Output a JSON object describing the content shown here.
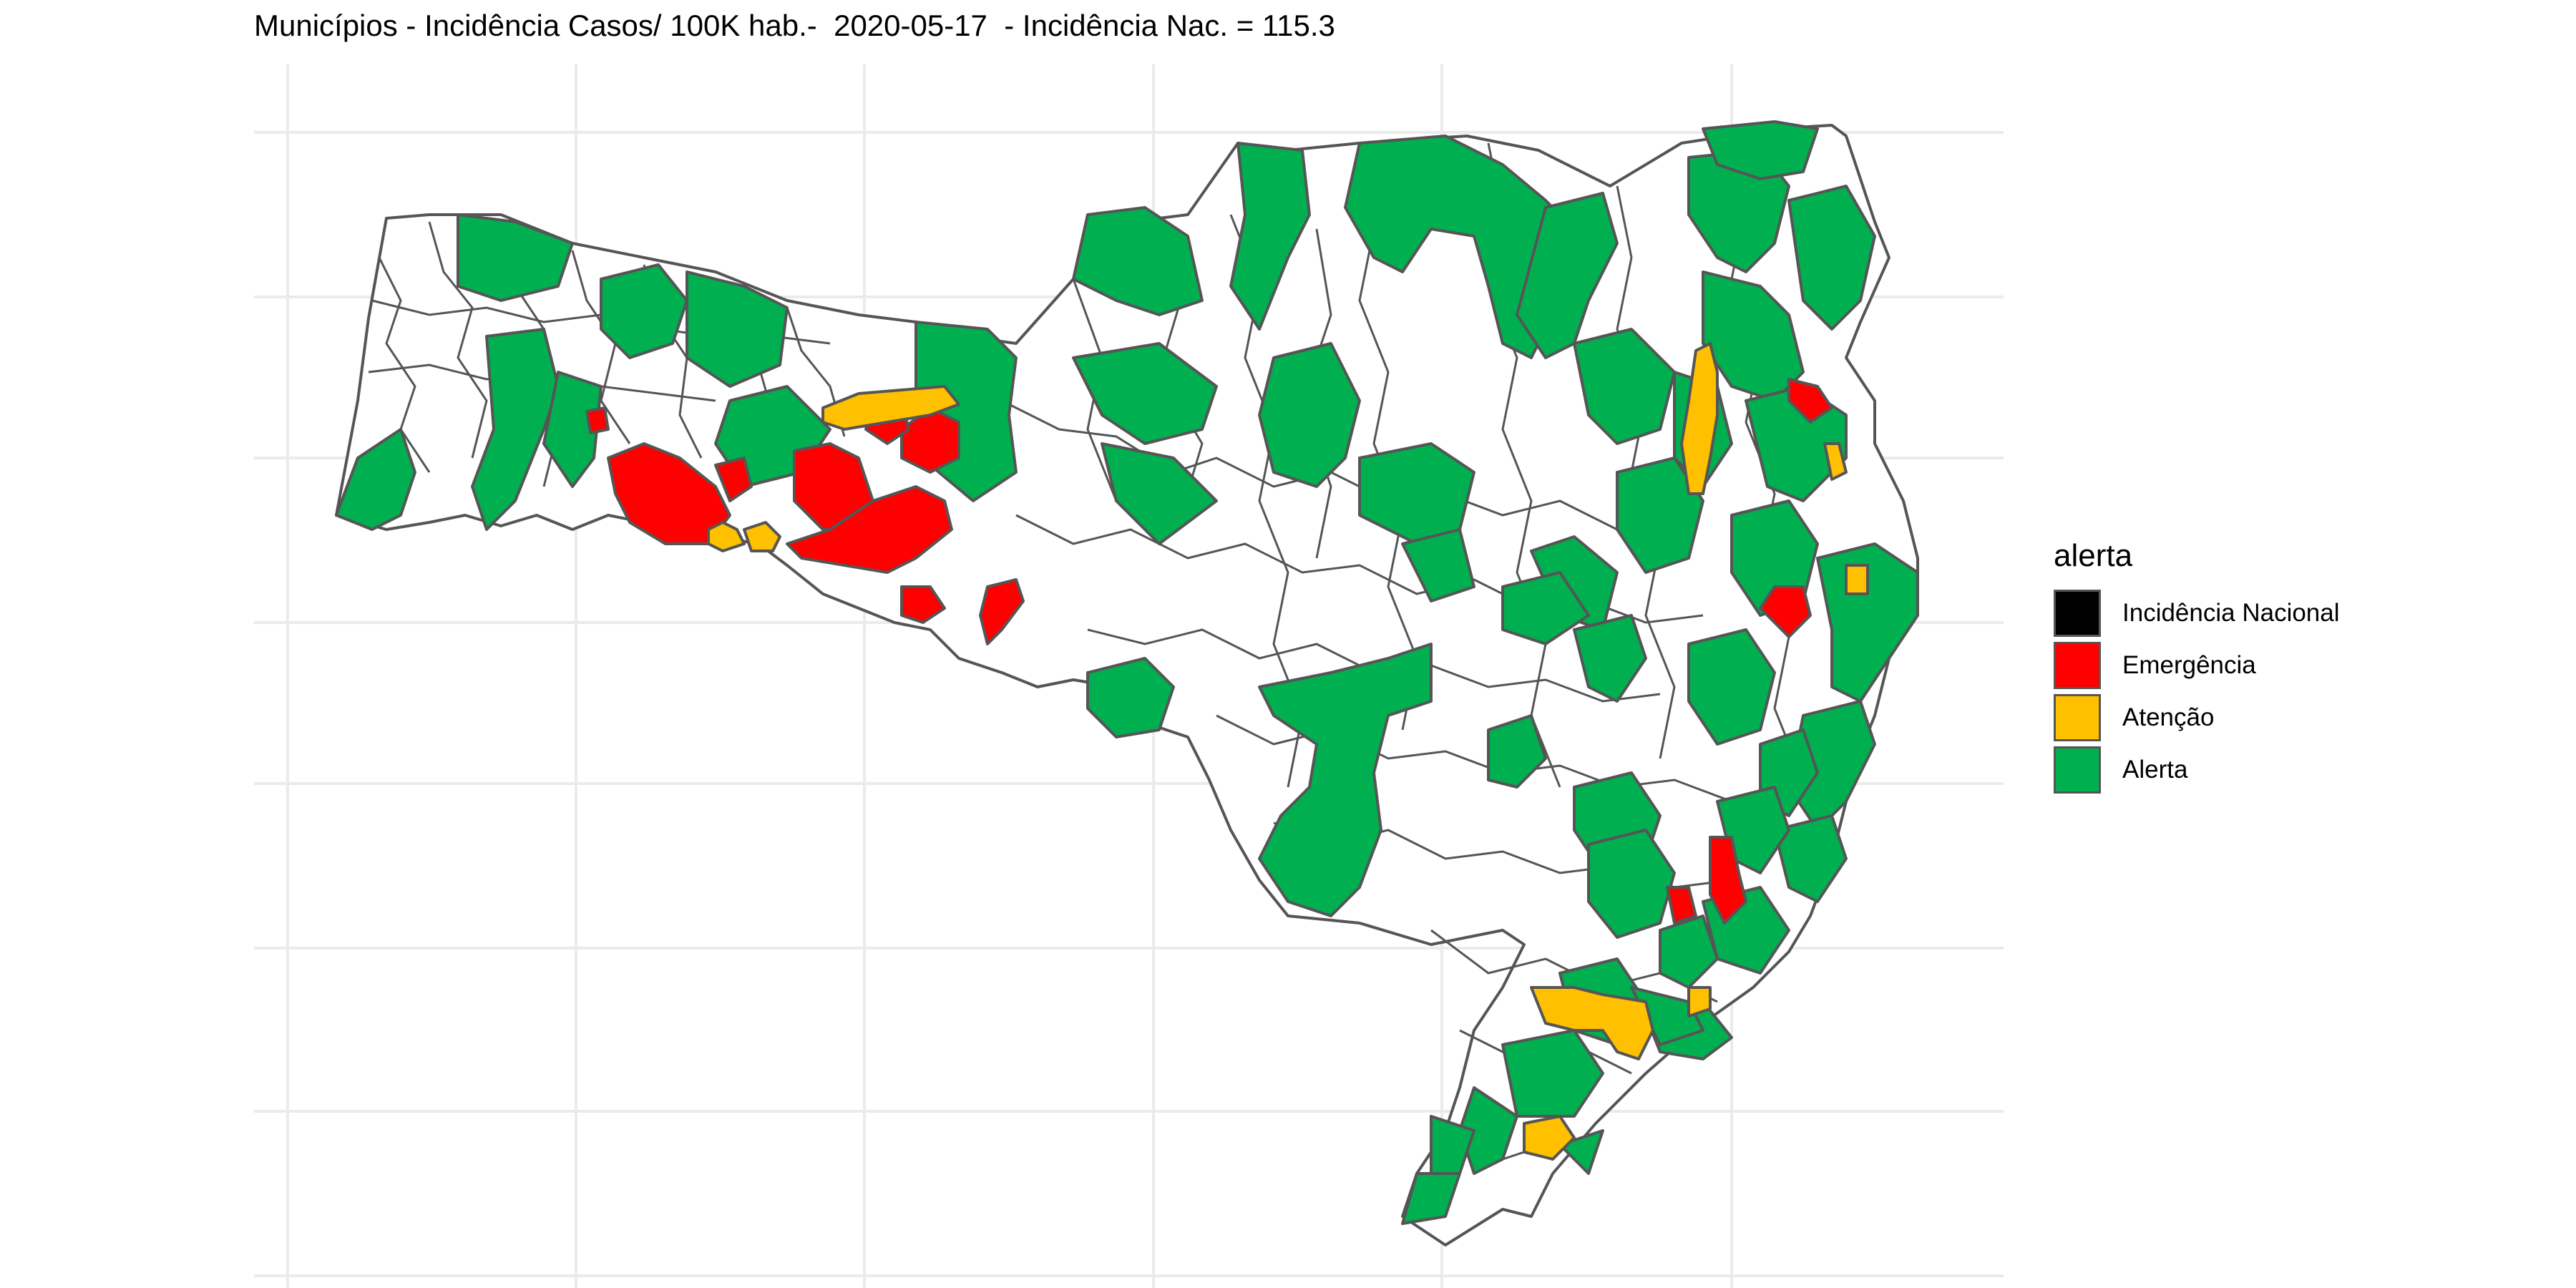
{
  "title": "Municípios - Incidência Casos/ 100K hab.-  2020-05-17  - Incidência Nac. = 115.3",
  "legend": {
    "title": "alerta",
    "items": [
      {
        "label": "Incidência Nacional",
        "color": "#000000"
      },
      {
        "label": "Emergência",
        "color": "#ff0000"
      },
      {
        "label": "Atenção",
        "color": "#ffc000"
      },
      {
        "label": "Alerta",
        "color": "#00b050"
      }
    ]
  },
  "colors": {
    "background": "#ffffff",
    "grid": "#ebebeb",
    "border": "#555555",
    "no_alert": "#ffffff"
  }
}
